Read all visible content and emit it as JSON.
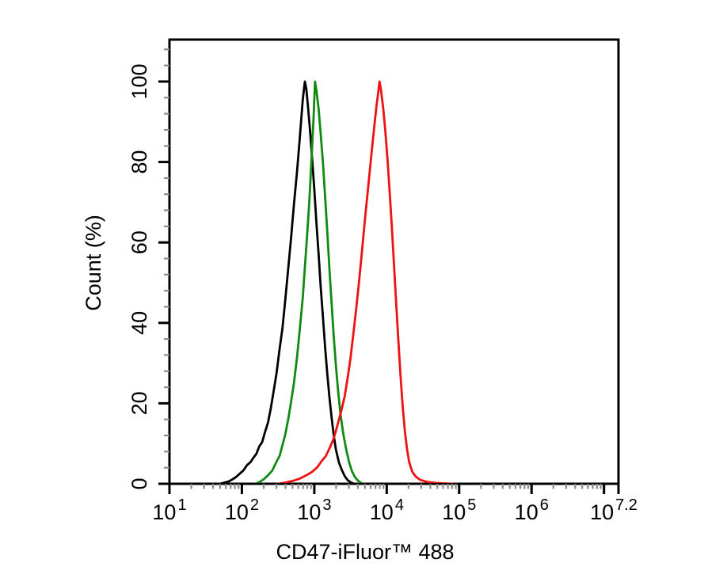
{
  "figure": {
    "background_color": "#ffffff",
    "frame_color": "#000000",
    "minor_tick_color": "#8c8c8c"
  },
  "chart_data": {
    "type": "line",
    "subtype": "flow-cytometry-overlay-histogram",
    "title": "",
    "xlabel": "CD47-iFluor™ 488",
    "ylabel": "Count (%)",
    "x_scale": "log10",
    "x_range_exponents": [
      1,
      7.2
    ],
    "ylim": [
      0,
      110.4
    ],
    "grid": false,
    "legend": null,
    "x_axis": {
      "major_ticks": [
        {
          "exp": 1,
          "sup": "1",
          "labeled": true,
          "dx": 0
        },
        {
          "exp": 2,
          "sup": "2",
          "labeled": true,
          "dx": 0
        },
        {
          "exp": 3,
          "sup": "3",
          "labeled": true,
          "dx": 0
        },
        {
          "exp": 4,
          "sup": "4",
          "labeled": true,
          "dx": 0
        },
        {
          "exp": 5,
          "sup": "5",
          "labeled": true,
          "dx": 0
        },
        {
          "exp": 6,
          "sup": "6",
          "labeled": true,
          "dx": 0
        },
        {
          "exp": 7,
          "sup": "7",
          "labeled": false,
          "dx": 0
        },
        {
          "exp": 7.2,
          "sup": "7.2",
          "labeled": true,
          "dx": -6
        }
      ],
      "tick_label_base": "10",
      "minor_mantissas": [
        2,
        3,
        4,
        5,
        6,
        7,
        8,
        9
      ]
    },
    "y_axis": {
      "major_ticks": [
        {
          "value": 0,
          "label": "0"
        },
        {
          "value": 20,
          "label": "20"
        },
        {
          "value": 40,
          "label": "40"
        },
        {
          "value": 60,
          "label": "60"
        },
        {
          "value": 80,
          "label": "80"
        },
        {
          "value": 100,
          "label": "100"
        }
      ],
      "minor_step": 4
    },
    "series": [
      {
        "name": "black-control",
        "color": "#000000",
        "peak_log10_x": 2.87,
        "peak_percent": 100,
        "points": [
          [
            1.7,
            0
          ],
          [
            1.76,
            0.3
          ],
          [
            1.82,
            0.6
          ],
          [
            1.87,
            1.1
          ],
          [
            1.92,
            1.7
          ],
          [
            1.97,
            2.5
          ],
          [
            2.02,
            3.3
          ],
          [
            2.07,
            4.6
          ],
          [
            2.12,
            5.4
          ],
          [
            2.16,
            6.5
          ],
          [
            2.2,
            7.4
          ],
          [
            2.24,
            9.3
          ],
          [
            2.28,
            10.4
          ],
          [
            2.32,
            12.9
          ],
          [
            2.36,
            15.2
          ],
          [
            2.4,
            18.8
          ],
          [
            2.44,
            23.2
          ],
          [
            2.48,
            27.6
          ],
          [
            2.52,
            33.4
          ],
          [
            2.56,
            38.7
          ],
          [
            2.6,
            45.8
          ],
          [
            2.64,
            53.6
          ],
          [
            2.68,
            61.2
          ],
          [
            2.72,
            69.7
          ],
          [
            2.76,
            77.4
          ],
          [
            2.79,
            83.8
          ],
          [
            2.82,
            90.6
          ],
          [
            2.84,
            95.4
          ],
          [
            2.86,
            98.6
          ],
          [
            2.87,
            100
          ],
          [
            2.89,
            98.2
          ],
          [
            2.91,
            94.3
          ],
          [
            2.94,
            88.1
          ],
          [
            2.97,
            80.7
          ],
          [
            3.0,
            73.2
          ],
          [
            3.03,
            64.8
          ],
          [
            3.06,
            56.9
          ],
          [
            3.09,
            48.6
          ],
          [
            3.12,
            41.2
          ],
          [
            3.15,
            33.8
          ],
          [
            3.18,
            27.1
          ],
          [
            3.21,
            21.3
          ],
          [
            3.24,
            16.2
          ],
          [
            3.27,
            11.8
          ],
          [
            3.3,
            8.4
          ],
          [
            3.34,
            5.3
          ],
          [
            3.38,
            3.4
          ],
          [
            3.42,
            1.9
          ],
          [
            3.46,
            0.9
          ],
          [
            3.51,
            0.3
          ],
          [
            3.55,
            0
          ]
        ]
      },
      {
        "name": "green",
        "color": "#128a12",
        "peak_log10_x": 3.01,
        "peak_percent": 100,
        "points": [
          [
            2.18,
            0
          ],
          [
            2.24,
            0.4
          ],
          [
            2.3,
            1.1
          ],
          [
            2.36,
            2.1
          ],
          [
            2.42,
            3.3
          ],
          [
            2.47,
            5.2
          ],
          [
            2.52,
            6.9
          ],
          [
            2.56,
            9.6
          ],
          [
            2.6,
            12.3
          ],
          [
            2.64,
            16.1
          ],
          [
            2.68,
            20.4
          ],
          [
            2.72,
            25.2
          ],
          [
            2.76,
            31.3
          ],
          [
            2.8,
            38.4
          ],
          [
            2.84,
            46.2
          ],
          [
            2.87,
            53.8
          ],
          [
            2.9,
            61.7
          ],
          [
            2.93,
            69.8
          ],
          [
            2.95,
            76.6
          ],
          [
            2.97,
            83.9
          ],
          [
            2.99,
            91.2
          ],
          [
            3.01,
            100
          ],
          [
            3.03,
            97.8
          ],
          [
            3.06,
            93.1
          ],
          [
            3.09,
            86.7
          ],
          [
            3.12,
            79.6
          ],
          [
            3.15,
            71.2
          ],
          [
            3.18,
            62.3
          ],
          [
            3.21,
            53.1
          ],
          [
            3.24,
            44.4
          ],
          [
            3.27,
            36.2
          ],
          [
            3.3,
            29.1
          ],
          [
            3.33,
            22.8
          ],
          [
            3.36,
            17.6
          ],
          [
            3.4,
            12.4
          ],
          [
            3.44,
            8.6
          ],
          [
            3.48,
            5.4
          ],
          [
            3.52,
            3.1
          ],
          [
            3.56,
            1.7
          ],
          [
            3.6,
            0.8
          ],
          [
            3.64,
            0.3
          ],
          [
            3.67,
            0
          ]
        ]
      },
      {
        "name": "red",
        "color": "#ee1111",
        "peak_log10_x": 3.9,
        "peak_percent": 100,
        "points": [
          [
            2.5,
            0
          ],
          [
            2.6,
            0.3
          ],
          [
            2.7,
            0.7
          ],
          [
            2.8,
            1.3
          ],
          [
            2.89,
            2.1
          ],
          [
            2.97,
            3.0
          ],
          [
            3.04,
            4.1
          ],
          [
            3.1,
            5.6
          ],
          [
            3.16,
            6.9
          ],
          [
            3.22,
            9.2
          ],
          [
            3.27,
            11.4
          ],
          [
            3.32,
            14.6
          ],
          [
            3.37,
            17.9
          ],
          [
            3.42,
            21.8
          ],
          [
            3.46,
            26.3
          ],
          [
            3.5,
            31.2
          ],
          [
            3.54,
            37.4
          ],
          [
            3.58,
            43.7
          ],
          [
            3.62,
            50.6
          ],
          [
            3.66,
            58.2
          ],
          [
            3.7,
            65.8
          ],
          [
            3.74,
            73.1
          ],
          [
            3.78,
            80.3
          ],
          [
            3.81,
            85.7
          ],
          [
            3.84,
            90.8
          ],
          [
            3.86,
            94.2
          ],
          [
            3.88,
            96.9
          ],
          [
            3.9,
            100
          ],
          [
            3.92,
            98.1
          ],
          [
            3.95,
            93.6
          ],
          [
            3.98,
            87.9
          ],
          [
            4.01,
            80.8
          ],
          [
            4.04,
            72.7
          ],
          [
            4.07,
            63.9
          ],
          [
            4.1,
            54.6
          ],
          [
            4.13,
            45.2
          ],
          [
            4.16,
            35.8
          ],
          [
            4.19,
            27.1
          ],
          [
            4.22,
            19.3
          ],
          [
            4.25,
            13.2
          ],
          [
            4.28,
            8.6
          ],
          [
            4.31,
            5.4
          ],
          [
            4.35,
            3.1
          ],
          [
            4.4,
            1.8
          ],
          [
            4.46,
            1.0
          ],
          [
            4.55,
            0.5
          ],
          [
            4.68,
            0.2
          ],
          [
            4.93,
            0
          ]
        ]
      }
    ]
  }
}
